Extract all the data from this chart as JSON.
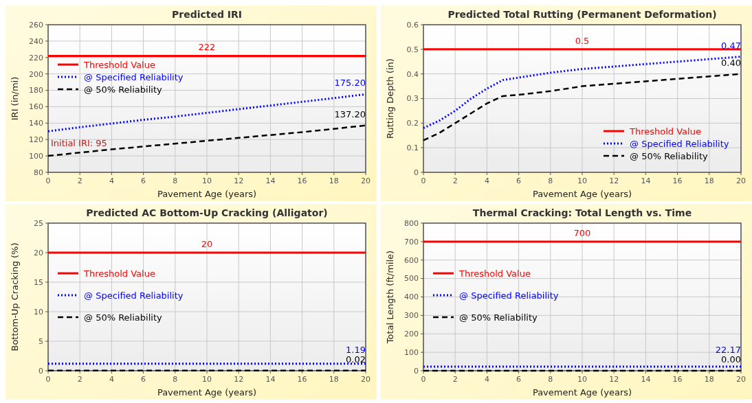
{
  "chart_data": [
    {
      "type": "line",
      "title": "Predicted IRI",
      "xlabel": "Pavement Age (years)",
      "ylabel": "IRI (in/mi)",
      "xlim": [
        0,
        20
      ],
      "xticks": [
        0,
        2,
        4,
        6,
        8,
        10,
        12,
        14,
        16,
        18,
        20
      ],
      "ylim": [
        80,
        260
      ],
      "yticks": [
        80,
        100,
        120,
        140,
        160,
        180,
        200,
        220,
        240,
        260
      ],
      "grid": true,
      "legend": "top left",
      "annotations": [
        "Initial IRI: 95"
      ],
      "series": [
        {
          "name": "Threshold Value",
          "color": "#ff0000",
          "line_style": "solid",
          "x": [
            0,
            10,
            20
          ],
          "values": [
            222,
            222,
            222
          ],
          "value_labels": [
            null,
            "222",
            null
          ]
        },
        {
          "name": "@ Specified Reliability",
          "color": "#0000ff",
          "line_style": "dotted",
          "x": [
            0,
            2,
            4,
            6,
            8,
            10,
            12,
            14,
            16,
            18,
            20
          ],
          "values": [
            130,
            135,
            139.5,
            144,
            148,
            152.5,
            157,
            161.5,
            166,
            170.5,
            175.2
          ],
          "value_labels": [
            null,
            null,
            null,
            null,
            null,
            null,
            null,
            null,
            null,
            null,
            "175.20"
          ]
        },
        {
          "name": "@ 50% Reliability",
          "color": "#000000",
          "line_style": "dashed",
          "x": [
            0,
            2,
            4,
            6,
            8,
            10,
            12,
            14,
            16,
            18,
            20
          ],
          "values": [
            100,
            104,
            108,
            111.5,
            115,
            118.5,
            122,
            125.5,
            129,
            133,
            137.2
          ],
          "value_labels": [
            null,
            null,
            null,
            null,
            null,
            null,
            null,
            null,
            null,
            null,
            "137.20"
          ]
        }
      ]
    },
    {
      "type": "line",
      "title": "Predicted Total Rutting (Permanent Deformation)",
      "xlabel": "Pavement Age (years)",
      "ylabel": "Rutting Depth (in)",
      "xlim": [
        0,
        20
      ],
      "xticks": [
        0,
        2,
        4,
        6,
        8,
        10,
        12,
        14,
        16,
        18,
        20
      ],
      "ylim": [
        0,
        0.6
      ],
      "yticks": [
        0,
        0.1,
        0.2,
        0.3,
        0.4,
        0.5,
        0.6
      ],
      "grid": true,
      "legend": "bottom right",
      "series": [
        {
          "name": "Threshold Value",
          "color": "#ff0000",
          "line_style": "solid",
          "x": [
            0,
            10,
            20
          ],
          "values": [
            0.5,
            0.5,
            0.5
          ],
          "value_labels": [
            null,
            "0.5",
            null
          ]
        },
        {
          "name": "@ Specified Reliability",
          "color": "#0000ff",
          "line_style": "dotted",
          "x": [
            0,
            1,
            2,
            3,
            4,
            5,
            6,
            8,
            10,
            12,
            14,
            16,
            18,
            20
          ],
          "values": [
            0.18,
            0.21,
            0.25,
            0.3,
            0.34,
            0.375,
            0.385,
            0.405,
            0.42,
            0.43,
            0.44,
            0.45,
            0.46,
            0.47
          ],
          "value_labels": [
            null,
            null,
            null,
            null,
            null,
            null,
            null,
            null,
            null,
            null,
            null,
            null,
            null,
            "0.47"
          ]
        },
        {
          "name": "@ 50% Reliability",
          "color": "#000000",
          "line_style": "dashed",
          "x": [
            0,
            1,
            2,
            3,
            4,
            5,
            6,
            8,
            10,
            12,
            14,
            16,
            18,
            20
          ],
          "values": [
            0.13,
            0.16,
            0.2,
            0.24,
            0.28,
            0.31,
            0.315,
            0.33,
            0.35,
            0.36,
            0.37,
            0.38,
            0.39,
            0.4
          ],
          "value_labels": [
            null,
            null,
            null,
            null,
            null,
            null,
            null,
            null,
            null,
            null,
            null,
            null,
            null,
            "0.40"
          ]
        }
      ]
    },
    {
      "type": "line",
      "title": "Predicted AC Bottom-Up Cracking (Alligator)",
      "xlabel": "Pavement Age (years)",
      "ylabel": "Bottom-Up Cracking (%)",
      "xlim": [
        0,
        20
      ],
      "xticks": [
        0,
        2,
        4,
        6,
        8,
        10,
        12,
        14,
        16,
        18,
        20
      ],
      "ylim": [
        0,
        25
      ],
      "yticks": [
        0,
        5,
        10,
        15,
        20,
        25
      ],
      "grid": true,
      "legend": "left",
      "series": [
        {
          "name": "Threshold Value",
          "color": "#ff0000",
          "line_style": "solid",
          "x": [
            0,
            10,
            20
          ],
          "values": [
            20,
            20,
            20
          ],
          "value_labels": [
            null,
            "20",
            null
          ]
        },
        {
          "name": "@ Specified Reliability",
          "color": "#0000ff",
          "line_style": "dotted",
          "x": [
            0,
            10,
            20
          ],
          "values": [
            1.19,
            1.19,
            1.19
          ],
          "value_labels": [
            null,
            null,
            "1.19"
          ]
        },
        {
          "name": "@ 50% Reliability",
          "color": "#000000",
          "line_style": "dashed",
          "x": [
            0,
            10,
            20
          ],
          "values": [
            0.02,
            0.02,
            0.02
          ],
          "value_labels": [
            null,
            null,
            "0.02"
          ]
        }
      ]
    },
    {
      "type": "line",
      "title": "Thermal Cracking: Total Length vs. Time",
      "xlabel": "Pavement Age (years)",
      "ylabel": "Total Length (ft/mile)",
      "xlim": [
        0,
        20
      ],
      "xticks": [
        0,
        2,
        4,
        6,
        8,
        10,
        12,
        14,
        16,
        18,
        20
      ],
      "ylim": [
        0,
        800
      ],
      "yticks": [
        0,
        100,
        200,
        300,
        400,
        500,
        600,
        700,
        800
      ],
      "grid": true,
      "legend": "left",
      "series": [
        {
          "name": "Threshold Value",
          "color": "#ff0000",
          "line_style": "solid",
          "x": [
            0,
            10,
            20
          ],
          "values": [
            700,
            700,
            700
          ],
          "value_labels": [
            null,
            "700",
            null
          ]
        },
        {
          "name": "@ Specified Reliability",
          "color": "#0000ff",
          "line_style": "dotted",
          "x": [
            0,
            10,
            20
          ],
          "values": [
            22.17,
            22.17,
            22.17
          ],
          "value_labels": [
            null,
            null,
            "22.17"
          ]
        },
        {
          "name": "@ 50% Reliability",
          "color": "#000000",
          "line_style": "dashed",
          "x": [
            0,
            10,
            20
          ],
          "values": [
            0,
            0,
            0
          ],
          "value_labels": [
            null,
            null,
            "0.00"
          ]
        }
      ]
    }
  ]
}
